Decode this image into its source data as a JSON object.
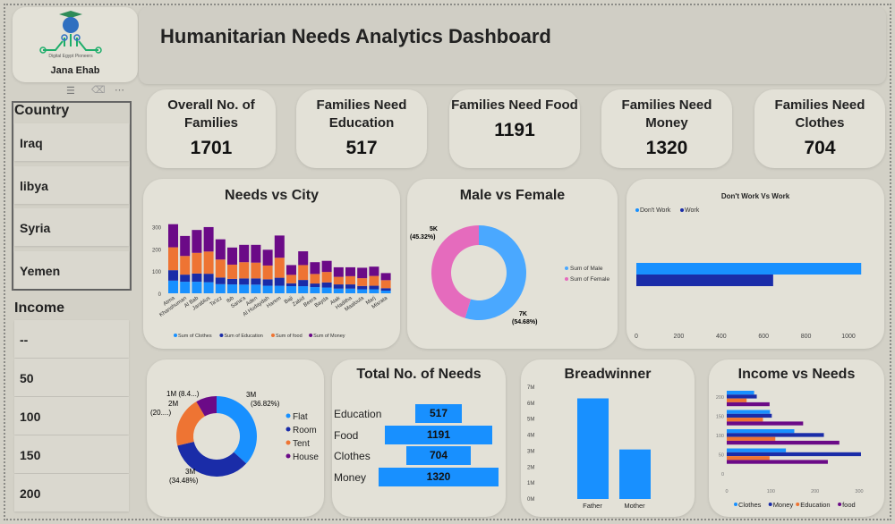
{
  "header": {
    "title": "Humanitarian Needs Analytics Dashboard",
    "logo_text": "Digital Egypt Pioneers",
    "user": "Jana Ehab"
  },
  "sidebar": {
    "country_title": "Country",
    "countries": [
      "Iraq",
      "libya",
      "Syria",
      "Yemen"
    ],
    "income_title": "Income",
    "incomes": [
      "--",
      "50",
      "100",
      "150",
      "200"
    ]
  },
  "kpis": [
    {
      "title": "Overall No. of Families",
      "value": "1701"
    },
    {
      "title": "Families Need Education",
      "value": "517"
    },
    {
      "title": "Families Need Food",
      "value": "1191"
    },
    {
      "title": "Families Need Money",
      "value": "1320"
    },
    {
      "title": "Families Need Clothes",
      "value": "704"
    }
  ],
  "colors": {
    "clothes": "#1890ff",
    "education": "#1a2ca8",
    "food": "#ee7433",
    "money": "#6b0a87",
    "male": "#4aa8ff",
    "female": "#e56bbd"
  },
  "chart_data": [
    {
      "id": "needs-city",
      "type": "bar",
      "stacked": true,
      "title": "Needs vs City",
      "categories": [
        "Atma",
        "Khanshuman",
        "Al Bab",
        "Jarablus",
        "Ta'izz",
        "Ibb",
        "Sana'a",
        "Aden",
        "Al Hudaydah",
        "Harem",
        "Baji",
        "Zabid",
        "Beera",
        "Bayda",
        "Atak",
        "Haditha",
        "Maaloula",
        "Marj",
        "Misrata"
      ],
      "series": [
        {
          "name": "Sum of Clothes",
          "values": [
            57,
            52,
            52,
            50,
            41,
            40,
            39,
            39,
            34,
            34,
            32,
            32,
            28,
            26,
            21,
            21,
            18,
            18,
            12
          ]
        },
        {
          "name": "Sum of Education",
          "values": [
            47,
            32,
            37,
            38,
            30,
            25,
            28,
            28,
            29,
            36,
            13,
            28,
            16,
            23,
            19,
            19,
            15,
            16,
            11
          ]
        },
        {
          "name": "Sum of food",
          "values": [
            103,
            84,
            93,
            100,
            81,
            64,
            73,
            71,
            62,
            90,
            38,
            67,
            43,
            47,
            34,
            37,
            35,
            44,
            36
          ]
        },
        {
          "name": "Sum of Money",
          "values": [
            104,
            90,
            103,
            110,
            91,
            77,
            78,
            80,
            71,
            100,
            44,
            62,
            53,
            50,
            43,
            40,
            47,
            42,
            32
          ]
        }
      ],
      "yticks": [
        0,
        100,
        200,
        300
      ],
      "ylim": [
        0,
        330
      ],
      "legend": "bottom"
    },
    {
      "id": "gender",
      "type": "pie",
      "donut": true,
      "title": "Male vs Female",
      "slices": [
        {
          "name": "Sum of Male",
          "label": "7K",
          "pct": "(54.68%)",
          "value": 54.68
        },
        {
          "name": "Sum of Female",
          "label": "5K",
          "pct": "(45.32%)",
          "value": 45.32
        }
      ],
      "legend": "right"
    },
    {
      "id": "work",
      "type": "bar",
      "orientation": "horizontal",
      "title": "Don't Work Vs Work",
      "series": [
        {
          "name": "Don't Work",
          "values": [
            1060
          ]
        },
        {
          "name": "Work",
          "values": [
            645
          ]
        }
      ],
      "xticks": [
        "0",
        "200",
        "400",
        "600",
        "800",
        "1000"
      ],
      "xlim": [
        0,
        1100
      ],
      "legend": "top-left"
    },
    {
      "id": "housing",
      "type": "pie",
      "donut": true,
      "slices": [
        {
          "name": "Flat",
          "label": "3M",
          "pct": "(36.82%)",
          "value": 36.82
        },
        {
          "name": "Room",
          "label": "3M",
          "pct": "(34.48%)",
          "value": 34.48
        },
        {
          "name": "Tent",
          "label": "2M",
          "pct": "(20....)",
          "value": 20.3
        },
        {
          "name": "House",
          "label": "1M",
          "pct": "(8.4...)",
          "value": 8.4
        }
      ],
      "legend": "right"
    },
    {
      "id": "total-needs",
      "type": "bar",
      "orientation": "horizontal",
      "title": "Total No. of Needs",
      "categories": [
        "Education",
        "Food",
        "Clothes",
        "Money"
      ],
      "values": [
        517,
        1191,
        704,
        1320
      ]
    },
    {
      "id": "breadwinner",
      "type": "bar",
      "title": "Breadwinner",
      "categories": [
        "Father",
        "Mother"
      ],
      "values": [
        6300000,
        3100000
      ],
      "yticks": [
        "0M",
        "1M",
        "2M",
        "3M",
        "4M",
        "5M",
        "6M",
        "7M"
      ],
      "ylim": [
        0,
        7000000
      ]
    },
    {
      "id": "income-needs",
      "type": "bar",
      "orientation": "horizontal",
      "title": "Income vs Needs",
      "categories": [
        "200",
        "150",
        "100",
        "50",
        "0"
      ],
      "series": [
        {
          "name": "Clothes",
          "values": [
            62,
            98,
            153,
            134,
            0
          ]
        },
        {
          "name": "Money",
          "values": [
            68,
            102,
            220,
            304,
            0
          ]
        },
        {
          "name": "Education",
          "values": [
            45,
            82,
            110,
            97,
            0
          ]
        },
        {
          "name": "food",
          "values": [
            97,
            173,
            255,
            229,
            0
          ]
        }
      ],
      "xticks": [
        "0",
        "100",
        "200",
        "300"
      ],
      "xlim": [
        0,
        320
      ],
      "legend": "bottom"
    }
  ]
}
